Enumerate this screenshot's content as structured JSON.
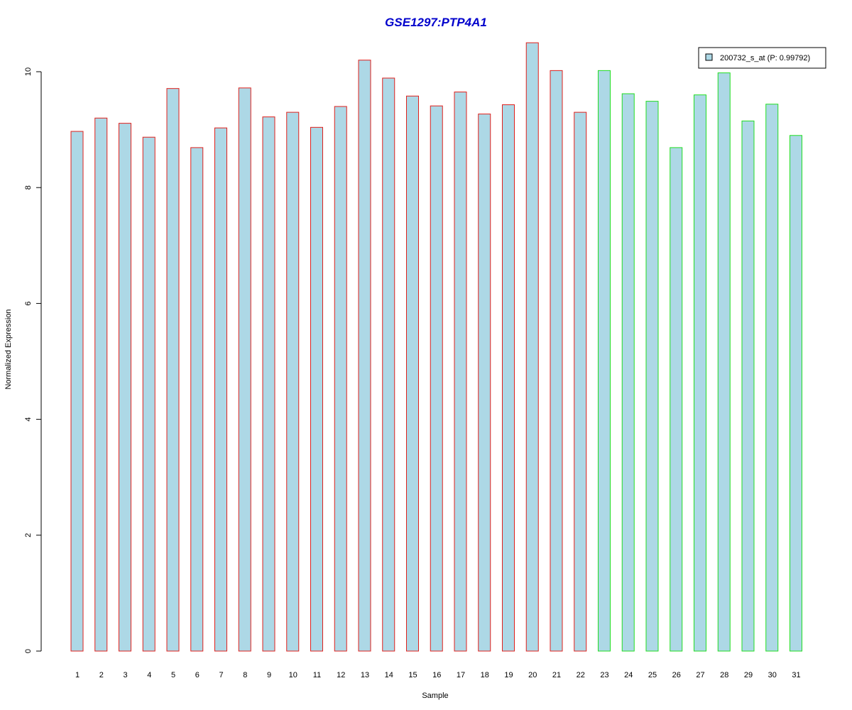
{
  "chart_data": {
    "type": "bar",
    "title": "GSE1297:PTP4A1",
    "xlabel": "Sample",
    "ylabel": "Normalized Expression",
    "ylim": [
      0,
      10.5
    ],
    "yticks": [
      0,
      2,
      4,
      6,
      8,
      10
    ],
    "categories": [
      "1",
      "2",
      "3",
      "4",
      "5",
      "6",
      "7",
      "8",
      "9",
      "10",
      "11",
      "12",
      "13",
      "14",
      "15",
      "16",
      "17",
      "18",
      "19",
      "20",
      "21",
      "22",
      "23",
      "24",
      "25",
      "26",
      "27",
      "28",
      "29",
      "30",
      "31"
    ],
    "values": [
      8.97,
      9.2,
      9.11,
      8.87,
      9.71,
      8.69,
      9.03,
      9.72,
      9.22,
      9.3,
      9.04,
      9.4,
      10.2,
      9.89,
      9.58,
      9.41,
      9.65,
      9.27,
      9.43,
      10.5,
      10.02,
      9.3,
      10.02,
      9.62,
      9.49,
      8.69,
      9.6,
      9.98,
      9.15,
      9.44,
      8.9
    ],
    "groups": [
      "a",
      "a",
      "a",
      "a",
      "a",
      "a",
      "a",
      "a",
      "a",
      "a",
      "a",
      "a",
      "a",
      "a",
      "a",
      "a",
      "a",
      "a",
      "a",
      "a",
      "a",
      "a",
      "b",
      "b",
      "b",
      "b",
      "b",
      "b",
      "b",
      "b",
      "b"
    ],
    "colors": {
      "fill": "#add8e6",
      "group_a_border": "#e0201c",
      "group_b_border": "#22dd22",
      "title": "#0000cc",
      "axis": "#000000"
    },
    "legend": {
      "label": "200732_s_at (P: 0.99792)",
      "position": "top-right"
    },
    "grid": false
  }
}
